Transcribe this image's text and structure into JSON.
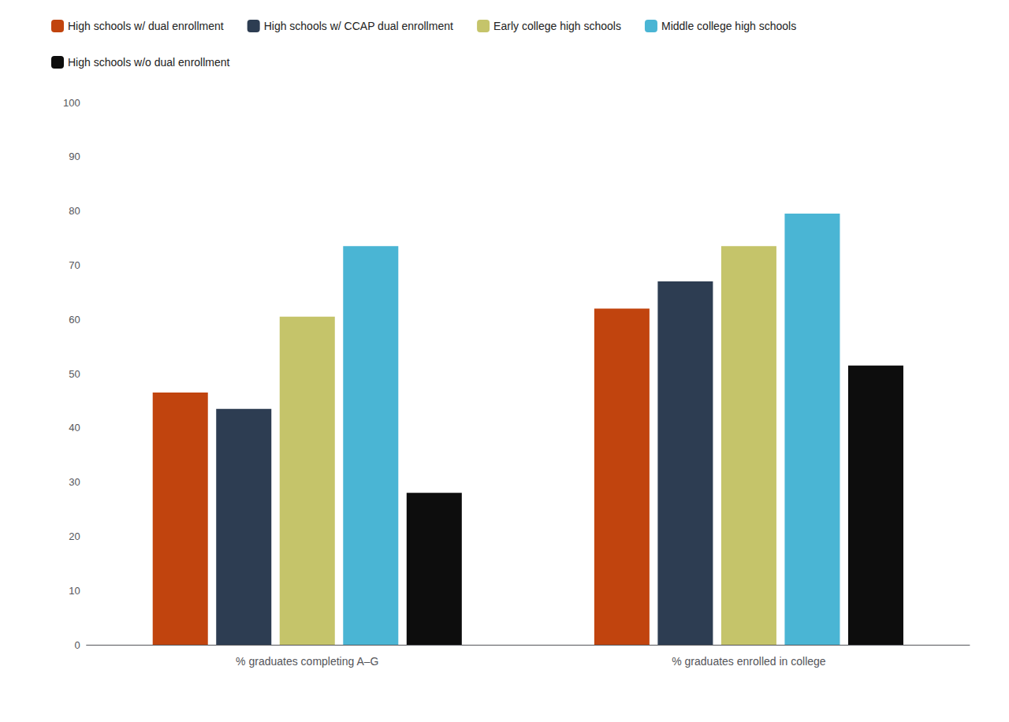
{
  "chart_data": {
    "type": "bar",
    "categories": [
      "% graduates completing A–G",
      "% graduates enrolled in college"
    ],
    "series": [
      {
        "name": "High schools w/ dual enrollment",
        "color": "#c1440e",
        "values": [
          46.5,
          62.0
        ]
      },
      {
        "name": "High schools w/ CCAP dual enrollment",
        "color": "#2d3d52",
        "values": [
          43.5,
          67.0
        ]
      },
      {
        "name": "Early college high schools",
        "color": "#c5c46a",
        "values": [
          60.5,
          73.5
        ]
      },
      {
        "name": "Middle college high schools",
        "color": "#4ab5d4",
        "values": [
          73.5,
          79.5
        ]
      },
      {
        "name": "High schools w/o dual enrollment",
        "color": "#0d0d0d",
        "values": [
          28.0,
          51.5
        ]
      }
    ],
    "ylim": [
      0,
      100
    ],
    "yticks": [
      0,
      10,
      20,
      30,
      40,
      50,
      60,
      70,
      80,
      90,
      100
    ],
    "grid": false,
    "legend": "upper left"
  }
}
